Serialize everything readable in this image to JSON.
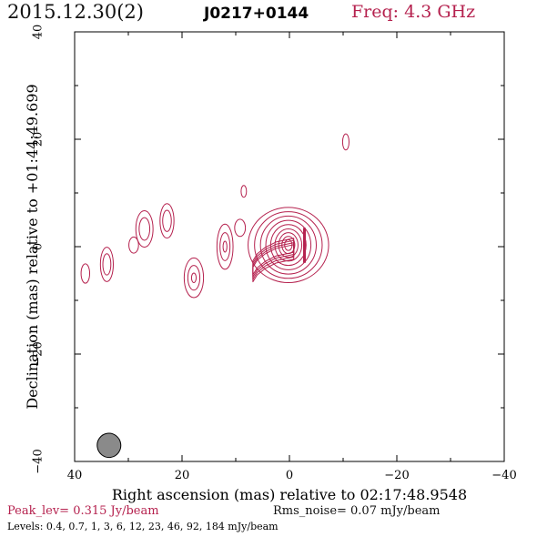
{
  "header": {
    "date": "2015.12.30(2)",
    "source": "J0217+0144",
    "freq": "Freq: 4.3 GHz"
  },
  "footer": {
    "peak": "Peak_lev=  0.315 Jy/beam",
    "rms": "Rms_noise= 0.07 mJy/beam",
    "levels": "Levels: 0.4, 0.7,   1,   3,   6,  12,  23,  46,  92, 184 mJy/beam"
  },
  "colors": {
    "contour": "#b5214e",
    "beam_fill": "#8a8a8a",
    "axis": "#000000"
  },
  "chart_data": {
    "type": "contour",
    "xlabel": "Right ascension (mas) relative to 02:17:48.9548",
    "ylabel": "Declination (mas) relative to +01:44:49.699",
    "xlim": [
      40,
      -40
    ],
    "ylim": [
      -40,
      40
    ],
    "xticks": [
      40,
      20,
      0,
      -20,
      -40
    ],
    "yticks": [
      -40,
      -20,
      0,
      20,
      40
    ],
    "xtick_labels": [
      "40",
      "20",
      "0",
      "−20",
      "−40"
    ],
    "ytick_labels": [
      "−40",
      "−20",
      "0",
      "20",
      "40"
    ],
    "beam": {
      "x": 33.6,
      "y": -37.0,
      "major_mas": 4.5,
      "minor_mas": 2.0,
      "pa_deg": -8
    },
    "core": {
      "x": 0.2,
      "y": 0.3,
      "levels": [
        {
          "rx": 7.5,
          "ry": 7.0
        },
        {
          "rx": 6.3,
          "ry": 6.2
        },
        {
          "rx": 5.2,
          "ry": 5.4
        },
        {
          "rx": 4.2,
          "ry": 4.6
        },
        {
          "rx": 3.3,
          "ry": 3.8
        },
        {
          "rx": 2.5,
          "ry": 3.0
        },
        {
          "rx": 1.8,
          "ry": 2.3
        },
        {
          "rx": 1.2,
          "ry": 1.6
        },
        {
          "rx": 0.7,
          "ry": 1.0
        }
      ]
    },
    "inner_jet": [
      {
        "x": -0.8,
        "y": -0.3
      },
      {
        "x": 2.5,
        "y": -1.0
      },
      {
        "x": 4.5,
        "y": -2.0
      },
      {
        "x": 6.0,
        "y": -3.2
      },
      {
        "x": 6.8,
        "y": -4.5
      }
    ],
    "features": [
      {
        "x": 12.0,
        "y": 0.0,
        "rx": 1.5,
        "ry": 4.2,
        "levels": 3
      },
      {
        "x": 9.2,
        "y": 3.5,
        "rx": 1.0,
        "ry": 1.6,
        "levels": 1
      },
      {
        "x": 8.5,
        "y": 10.3,
        "rx": 0.5,
        "ry": 1.1,
        "levels": 1
      },
      {
        "x": -10.5,
        "y": 19.5,
        "rx": 0.6,
        "ry": 1.5,
        "levels": 1
      },
      {
        "x": 17.8,
        "y": -5.8,
        "rx": 1.8,
        "ry": 3.7,
        "levels": 3
      },
      {
        "x": 22.8,
        "y": 4.8,
        "rx": 1.3,
        "ry": 3.2,
        "levels": 2
      },
      {
        "x": 27.0,
        "y": 3.3,
        "rx": 1.6,
        "ry": 3.4,
        "levels": 2
      },
      {
        "x": 29.0,
        "y": 0.3,
        "rx": 0.9,
        "ry": 1.5,
        "levels": 1
      },
      {
        "x": 34.0,
        "y": -3.3,
        "rx": 1.2,
        "ry": 3.2,
        "levels": 2
      },
      {
        "x": 38.0,
        "y": -5.0,
        "rx": 0.8,
        "ry": 1.8,
        "levels": 1
      }
    ]
  }
}
